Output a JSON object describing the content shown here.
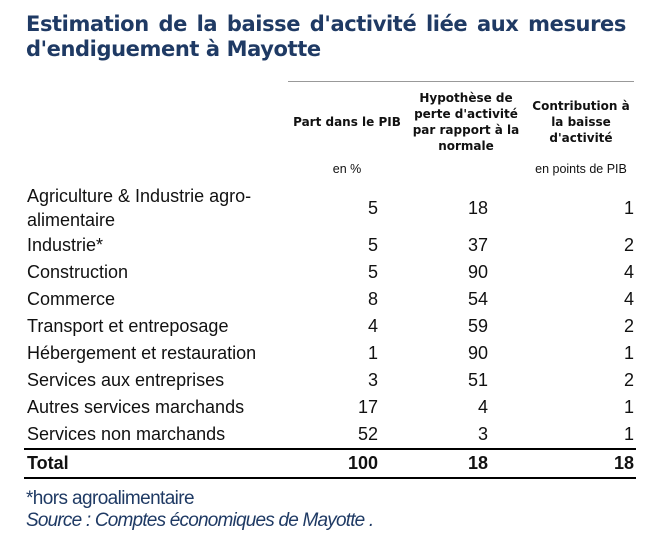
{
  "title": "Estimation de la baisse d'activité liée aux mesures d'endiguement à Mayotte",
  "headers": {
    "col1": "Part dans le PIB",
    "col2": "Hypothèse de perte d'activité par rapport à la normale",
    "col3": "Contribution à la baisse d'activité"
  },
  "units": {
    "col1": "en %",
    "col3": "en points de PIB"
  },
  "rows": [
    {
      "label": "Agriculture & Industrie agro-alimentaire",
      "part": "5",
      "perte": "18",
      "contribution": "1"
    },
    {
      "label": "Industrie*",
      "part": "5",
      "perte": "37",
      "contribution": "2"
    },
    {
      "label": "Construction",
      "part": "5",
      "perte": "90",
      "contribution": "4"
    },
    {
      "label": "Commerce",
      "part": "8",
      "perte": "54",
      "contribution": "4"
    },
    {
      "label": "Transport et entreposage",
      "part": "4",
      "perte": "59",
      "contribution": "2"
    },
    {
      "label": "Hébergement et restauration",
      "part": "1",
      "perte": "90",
      "contribution": "1"
    },
    {
      "label": "Services aux entreprises",
      "part": "3",
      "perte": "51",
      "contribution": "2"
    },
    {
      "label": "Autres services marchands",
      "part": "17",
      "perte": "4",
      "contribution": "1"
    },
    {
      "label": "Services non marchands",
      "part": "52",
      "perte": "3",
      "contribution": "1"
    }
  ],
  "total": {
    "label": "Total",
    "part": "100",
    "perte": "18",
    "contribution": "18"
  },
  "footnote": "*hors agroalimentaire",
  "source": "Source : Comptes économiques de Mayotte ."
}
